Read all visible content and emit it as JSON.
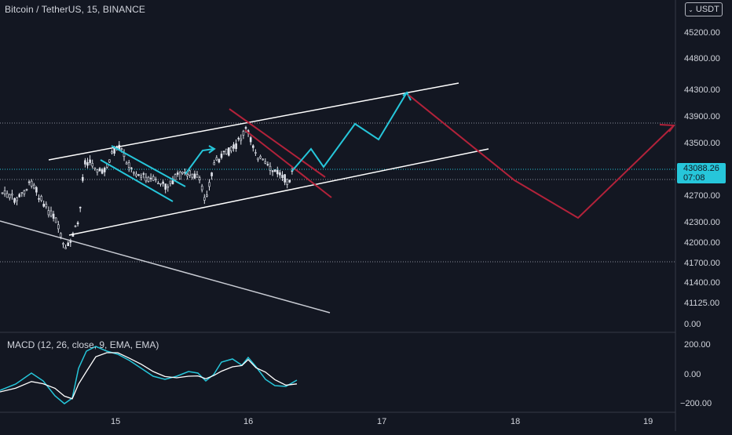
{
  "header": {
    "title": "Bitcoin / TetherUS, 15, BINANCE"
  },
  "currency": {
    "label": "USDT",
    "chevron": "⌄"
  },
  "price_axis": {
    "labels": [
      "45200.00",
      "44800.00",
      "44300.00",
      "43900.00",
      "43500.00",
      "42700.00",
      "42300.00",
      "42000.00",
      "41700.00",
      "41400.00",
      "41125.00",
      "0.00"
    ]
  },
  "current_price": {
    "value": "43088.26",
    "countdown": "07:08"
  },
  "macd": {
    "title": "MACD (12, 26, close, 9, EMA, EMA)",
    "axis_labels": [
      "200.00",
      "0.00",
      "−200.00"
    ]
  },
  "time_axis": {
    "labels": [
      "15",
      "16",
      "17",
      "18",
      "19"
    ]
  },
  "colors": {
    "background": "#131722",
    "grid": "#2a2e39",
    "candle": "#e0e3eb",
    "projection_up": "#26c6da",
    "projection_down": "#b2223a",
    "channel": "#ffffff",
    "price_tag": "#26c6da"
  }
}
